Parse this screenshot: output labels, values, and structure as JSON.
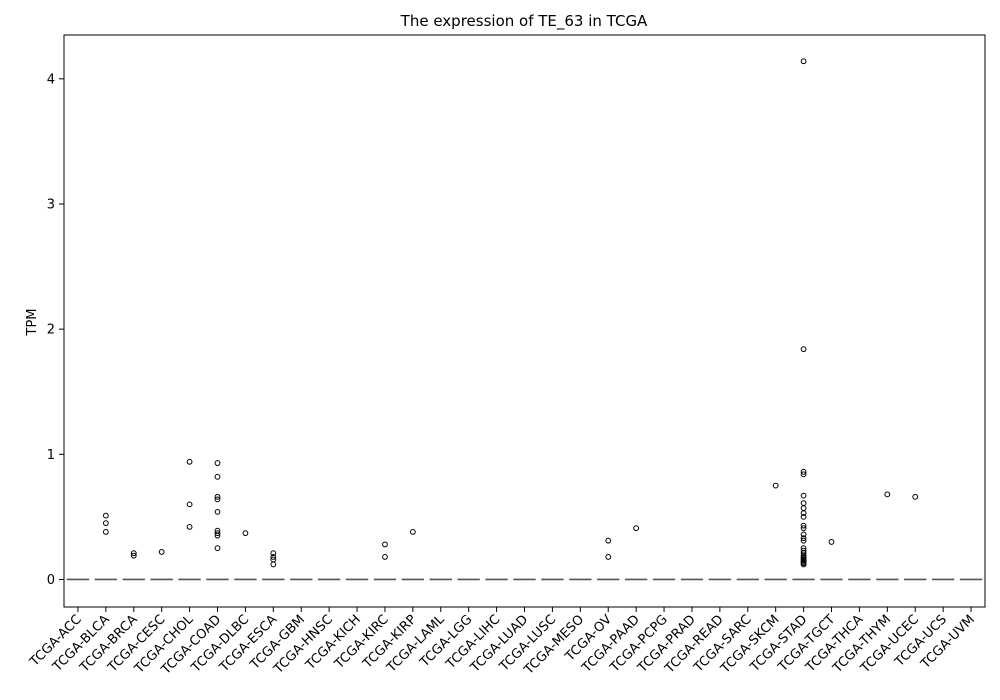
{
  "chart_data": {
    "type": "box",
    "title": "The expression of TE_63 in TCGA",
    "xlabel": "",
    "ylabel": "TPM",
    "ylim": [
      -0.22,
      4.35
    ],
    "yticks": [
      0,
      1,
      2,
      3,
      4
    ],
    "grid": false,
    "categories": [
      "TCGA-ACC",
      "TCGA-BLCA",
      "TCGA-BRCA",
      "TCGA-CESC",
      "TCGA-CHOL",
      "TCGA-COAD",
      "TCGA-DLBC",
      "TCGA-ESCA",
      "TCGA-GBM",
      "TCGA-HNSC",
      "TCGA-KICH",
      "TCGA-KIRC",
      "TCGA-KIRP",
      "TCGA-LAML",
      "TCGA-LGG",
      "TCGA-LIHC",
      "TCGA-LUAD",
      "TCGA-LUSC",
      "TCGA-MESO",
      "TCGA-OV",
      "TCGA-PAAD",
      "TCGA-PCPG",
      "TCGA-PRAD",
      "TCGA-READ",
      "TCGA-SARC",
      "TCGA-SKCM",
      "TCGA-STAD",
      "TCGA-TGCT",
      "TCGA-THCA",
      "TCGA-THYM",
      "TCGA-UCEC",
      "TCGA-UCS",
      "TCGA-UVM"
    ],
    "median": [
      0,
      0,
      0,
      0,
      0,
      0,
      0,
      0,
      0,
      0,
      0,
      0,
      0,
      0,
      0,
      0,
      0,
      0,
      0,
      0,
      0,
      0,
      0,
      0,
      0,
      0,
      0,
      0,
      0,
      0,
      0,
      0,
      0
    ],
    "outliers": [
      [],
      [
        0.51,
        0.45,
        0.38
      ],
      [
        0.21,
        0.19
      ],
      [
        0.22
      ],
      [
        0.94,
        0.6,
        0.42
      ],
      [
        0.93,
        0.82,
        0.66,
        0.64,
        0.54,
        0.39,
        0.37,
        0.35,
        0.25
      ],
      [
        0.37
      ],
      [
        0.21,
        0.18,
        0.16,
        0.12
      ],
      [],
      [],
      [],
      [
        0.28,
        0.18
      ],
      [
        0.38
      ],
      [],
      [],
      [],
      [],
      [],
      [],
      [
        0.31,
        0.18
      ],
      [
        0.41
      ],
      [],
      [],
      [],
      [],
      [
        0.75
      ],
      [
        4.14,
        1.84,
        0.86,
        0.84,
        0.67,
        0.61,
        0.57,
        0.53,
        0.5,
        0.43,
        0.41,
        0.36,
        0.33,
        0.31,
        0.25,
        0.23,
        0.21,
        0.19,
        0.18,
        0.17,
        0.16,
        0.15,
        0.14,
        0.13,
        0.12
      ],
      [
        0.3
      ],
      [],
      [
        0.68
      ],
      [
        0.66
      ],
      [],
      []
    ]
  }
}
